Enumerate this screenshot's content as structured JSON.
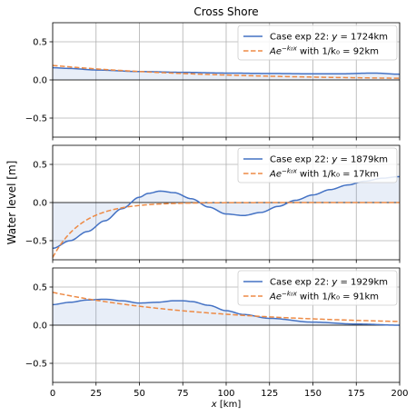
{
  "chart_data": {
    "type": "line",
    "title": "Cross Shore",
    "ylabel": "Water level [m]",
    "xlabel_prefix": "x",
    "xlabel_suffix": " [km]",
    "xlim": [
      0,
      200
    ],
    "ylim": [
      -0.75,
      0.75
    ],
    "xticks": [
      0,
      25,
      50,
      75,
      100,
      125,
      150,
      175,
      200
    ],
    "yticks": [
      -0.5,
      0.0,
      0.5
    ],
    "ytick_labels": [
      "−0.5",
      "0.0",
      "0.5"
    ],
    "grid": true,
    "legend_position": "top-right",
    "colors": {
      "case": "#4472c4",
      "fit": "#ed8a45",
      "fill": "#4472c4"
    },
    "panels": [
      {
        "legend": [
          {
            "prefix": "Case exp 22: ",
            "math": "y",
            "suffix": " = 1724km"
          },
          {
            "prefix": "",
            "math": "Ae",
            "sup": "−k₀x",
            "suffix": " with 1/k₀ = 92km"
          }
        ],
        "case_series": {
          "x": [
            0,
            10,
            25,
            50,
            75,
            100,
            125,
            150,
            165,
            185,
            200
          ],
          "y": [
            0.16,
            0.15,
            0.13,
            0.11,
            0.1,
            0.09,
            0.085,
            0.08,
            0.08,
            0.09,
            0.075
          ]
        },
        "fit_series": {
          "A": 0.19,
          "inv_k0": 92
        }
      },
      {
        "legend": [
          {
            "prefix": "Case exp 22: ",
            "math": "y",
            "suffix": " = 1879km"
          },
          {
            "prefix": "",
            "math": "Ae",
            "sup": "−k₀x",
            "suffix": " with 1/k₀ = 17km"
          }
        ],
        "case_series": {
          "x": [
            0,
            10,
            20,
            30,
            40,
            50,
            55,
            62,
            70,
            80,
            90,
            100,
            110,
            120,
            130,
            140,
            150,
            160,
            170,
            180,
            190,
            200
          ],
          "y": [
            -0.6,
            -0.5,
            -0.38,
            -0.24,
            -0.08,
            0.07,
            0.12,
            0.15,
            0.13,
            0.05,
            -0.06,
            -0.15,
            -0.17,
            -0.13,
            -0.05,
            0.03,
            0.1,
            0.17,
            0.23,
            0.28,
            0.32,
            0.34
          ]
        },
        "fit_series": {
          "A": -0.72,
          "inv_k0": 17
        }
      },
      {
        "legend": [
          {
            "prefix": "Case exp 22: ",
            "math": "y",
            "suffix": " = 1929km"
          },
          {
            "prefix": "",
            "math": "Ae",
            "sup": "−k₀x",
            "suffix": " with 1/k₀ = 91km"
          }
        ],
        "case_series": {
          "x": [
            0,
            10,
            20,
            30,
            40,
            50,
            60,
            70,
            75,
            80,
            90,
            100,
            110,
            125,
            150,
            175,
            200
          ],
          "y": [
            0.27,
            0.3,
            0.33,
            0.34,
            0.32,
            0.29,
            0.3,
            0.32,
            0.32,
            0.31,
            0.26,
            0.19,
            0.14,
            0.09,
            0.04,
            0.015,
            0.0
          ]
        },
        "fit_series": {
          "A": 0.43,
          "inv_k0": 91
        }
      }
    ]
  }
}
